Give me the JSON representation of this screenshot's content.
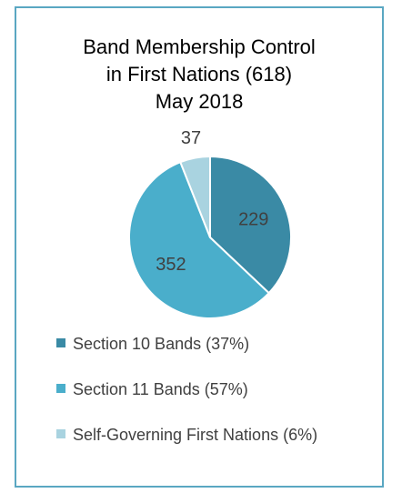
{
  "chart_data": {
    "type": "pie",
    "title_lines": [
      "Band Membership Control",
      "in First Nations (618)",
      "May 2018"
    ],
    "slices": [
      {
        "label": "Section 10 Bands (37%)",
        "value": 229,
        "color": "#3a8aa5"
      },
      {
        "label": "Section 11 Bands (57%)",
        "value": 352,
        "color": "#4aaecb"
      },
      {
        "label": "Self-Governing First Nations (6%)",
        "value": 37,
        "color": "#a9d3e0"
      }
    ],
    "legend_position": "bottom",
    "border_color": "#5aa7c2"
  }
}
